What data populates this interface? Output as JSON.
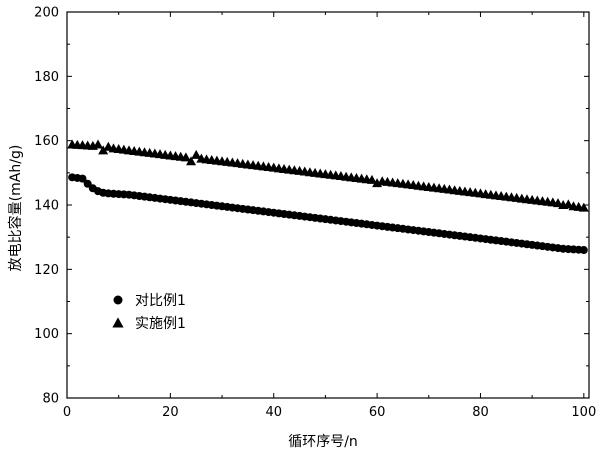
{
  "chart_data": {
    "type": "scatter",
    "title": "",
    "xlabel": "循环序号/n",
    "ylabel": "放电比容量(mAh/g)",
    "xlim": [
      0,
      101
    ],
    "ylim": [
      80,
      200
    ],
    "xticks": [
      0,
      20,
      40,
      60,
      80,
      100
    ],
    "yticks": [
      80,
      100,
      120,
      140,
      160,
      180,
      200
    ],
    "grid": false,
    "legend_position": "left",
    "series": [
      {
        "name": "对比例1",
        "marker": "circle",
        "color": "#000000",
        "x": [
          1,
          2,
          3,
          4,
          5,
          6,
          7,
          8,
          9,
          10,
          11,
          12,
          13,
          14,
          15,
          16,
          17,
          18,
          19,
          20,
          21,
          22,
          23,
          24,
          25,
          26,
          27,
          28,
          29,
          30,
          31,
          32,
          33,
          34,
          35,
          36,
          37,
          38,
          39,
          40,
          41,
          42,
          43,
          44,
          45,
          46,
          47,
          48,
          49,
          50,
          51,
          52,
          53,
          54,
          55,
          56,
          57,
          58,
          59,
          60,
          61,
          62,
          63,
          64,
          65,
          66,
          67,
          68,
          69,
          70,
          71,
          72,
          73,
          74,
          75,
          76,
          77,
          78,
          79,
          80,
          81,
          82,
          83,
          84,
          85,
          86,
          87,
          88,
          89,
          90,
          91,
          92,
          93,
          94,
          95,
          96,
          97,
          98,
          99,
          100
        ],
        "y": [
          148.6,
          148.4,
          148.2,
          146.6,
          145.2,
          144.3,
          143.8,
          143.6,
          143.5,
          143.4,
          143.3,
          143.2,
          143.0,
          142.8,
          142.6,
          142.4,
          142.2,
          142.0,
          141.8,
          141.6,
          141.4,
          141.2,
          141.0,
          140.8,
          140.6,
          140.4,
          140.2,
          140.0,
          139.8,
          139.6,
          139.4,
          139.2,
          139.0,
          138.8,
          138.6,
          138.4,
          138.2,
          138.0,
          137.8,
          137.6,
          137.4,
          137.2,
          137.0,
          136.8,
          136.6,
          136.4,
          136.2,
          136.0,
          135.8,
          135.6,
          135.4,
          135.2,
          135.0,
          134.8,
          134.6,
          134.4,
          134.2,
          134.0,
          133.8,
          133.6,
          133.4,
          133.2,
          133.0,
          132.8,
          132.6,
          132.4,
          132.2,
          132.0,
          131.8,
          131.6,
          131.4,
          131.2,
          131.0,
          130.8,
          130.6,
          130.4,
          130.2,
          130.0,
          129.8,
          129.6,
          129.4,
          129.2,
          129.0,
          128.8,
          128.6,
          128.4,
          128.2,
          128.0,
          127.8,
          127.6,
          127.4,
          127.2,
          127.0,
          126.8,
          126.6,
          126.4,
          126.3,
          126.2,
          126.1,
          126.0
        ]
      },
      {
        "name": "实施例1",
        "marker": "triangle",
        "color": "#000000",
        "x": [
          1,
          2,
          3,
          4,
          5,
          6,
          7,
          8,
          9,
          10,
          11,
          12,
          13,
          14,
          15,
          16,
          17,
          18,
          19,
          20,
          21,
          22,
          23,
          24,
          25,
          26,
          27,
          28,
          29,
          30,
          31,
          32,
          33,
          34,
          35,
          36,
          37,
          38,
          39,
          40,
          41,
          42,
          43,
          44,
          45,
          46,
          47,
          48,
          49,
          50,
          51,
          52,
          53,
          54,
          55,
          56,
          57,
          58,
          59,
          60,
          61,
          62,
          63,
          64,
          65,
          66,
          67,
          68,
          69,
          70,
          71,
          72,
          73,
          74,
          75,
          76,
          77,
          78,
          79,
          80,
          81,
          82,
          83,
          84,
          85,
          86,
          87,
          88,
          89,
          90,
          91,
          92,
          93,
          94,
          95,
          96,
          97,
          98,
          99,
          100
        ],
        "y": [
          158.8,
          158.7,
          158.6,
          158.5,
          158.4,
          158.8,
          157.0,
          158.1,
          157.6,
          157.4,
          157.2,
          157.0,
          156.8,
          156.6,
          156.4,
          156.2,
          156.0,
          155.8,
          155.6,
          155.4,
          155.2,
          155.0,
          154.8,
          153.6,
          155.6,
          154.4,
          154.2,
          154.0,
          153.8,
          153.6,
          153.4,
          153.2,
          153.0,
          152.8,
          152.6,
          152.4,
          152.2,
          152.0,
          151.8,
          151.6,
          151.4,
          151.2,
          151.0,
          150.8,
          150.6,
          150.4,
          150.2,
          150.0,
          149.8,
          149.6,
          149.4,
          149.2,
          149.0,
          148.8,
          148.6,
          148.4,
          148.2,
          148.0,
          147.8,
          146.8,
          147.4,
          147.2,
          147.0,
          146.8,
          146.6,
          146.4,
          146.2,
          146.0,
          145.8,
          145.6,
          145.4,
          145.2,
          145.0,
          144.8,
          144.6,
          144.4,
          144.2,
          144.0,
          143.8,
          143.6,
          143.4,
          143.2,
          143.0,
          142.8,
          142.6,
          142.4,
          142.2,
          142.0,
          141.8,
          141.6,
          141.4,
          141.2,
          141.0,
          140.8,
          140.6,
          140.0,
          140.2,
          139.6,
          139.4,
          139.2
        ]
      }
    ]
  }
}
